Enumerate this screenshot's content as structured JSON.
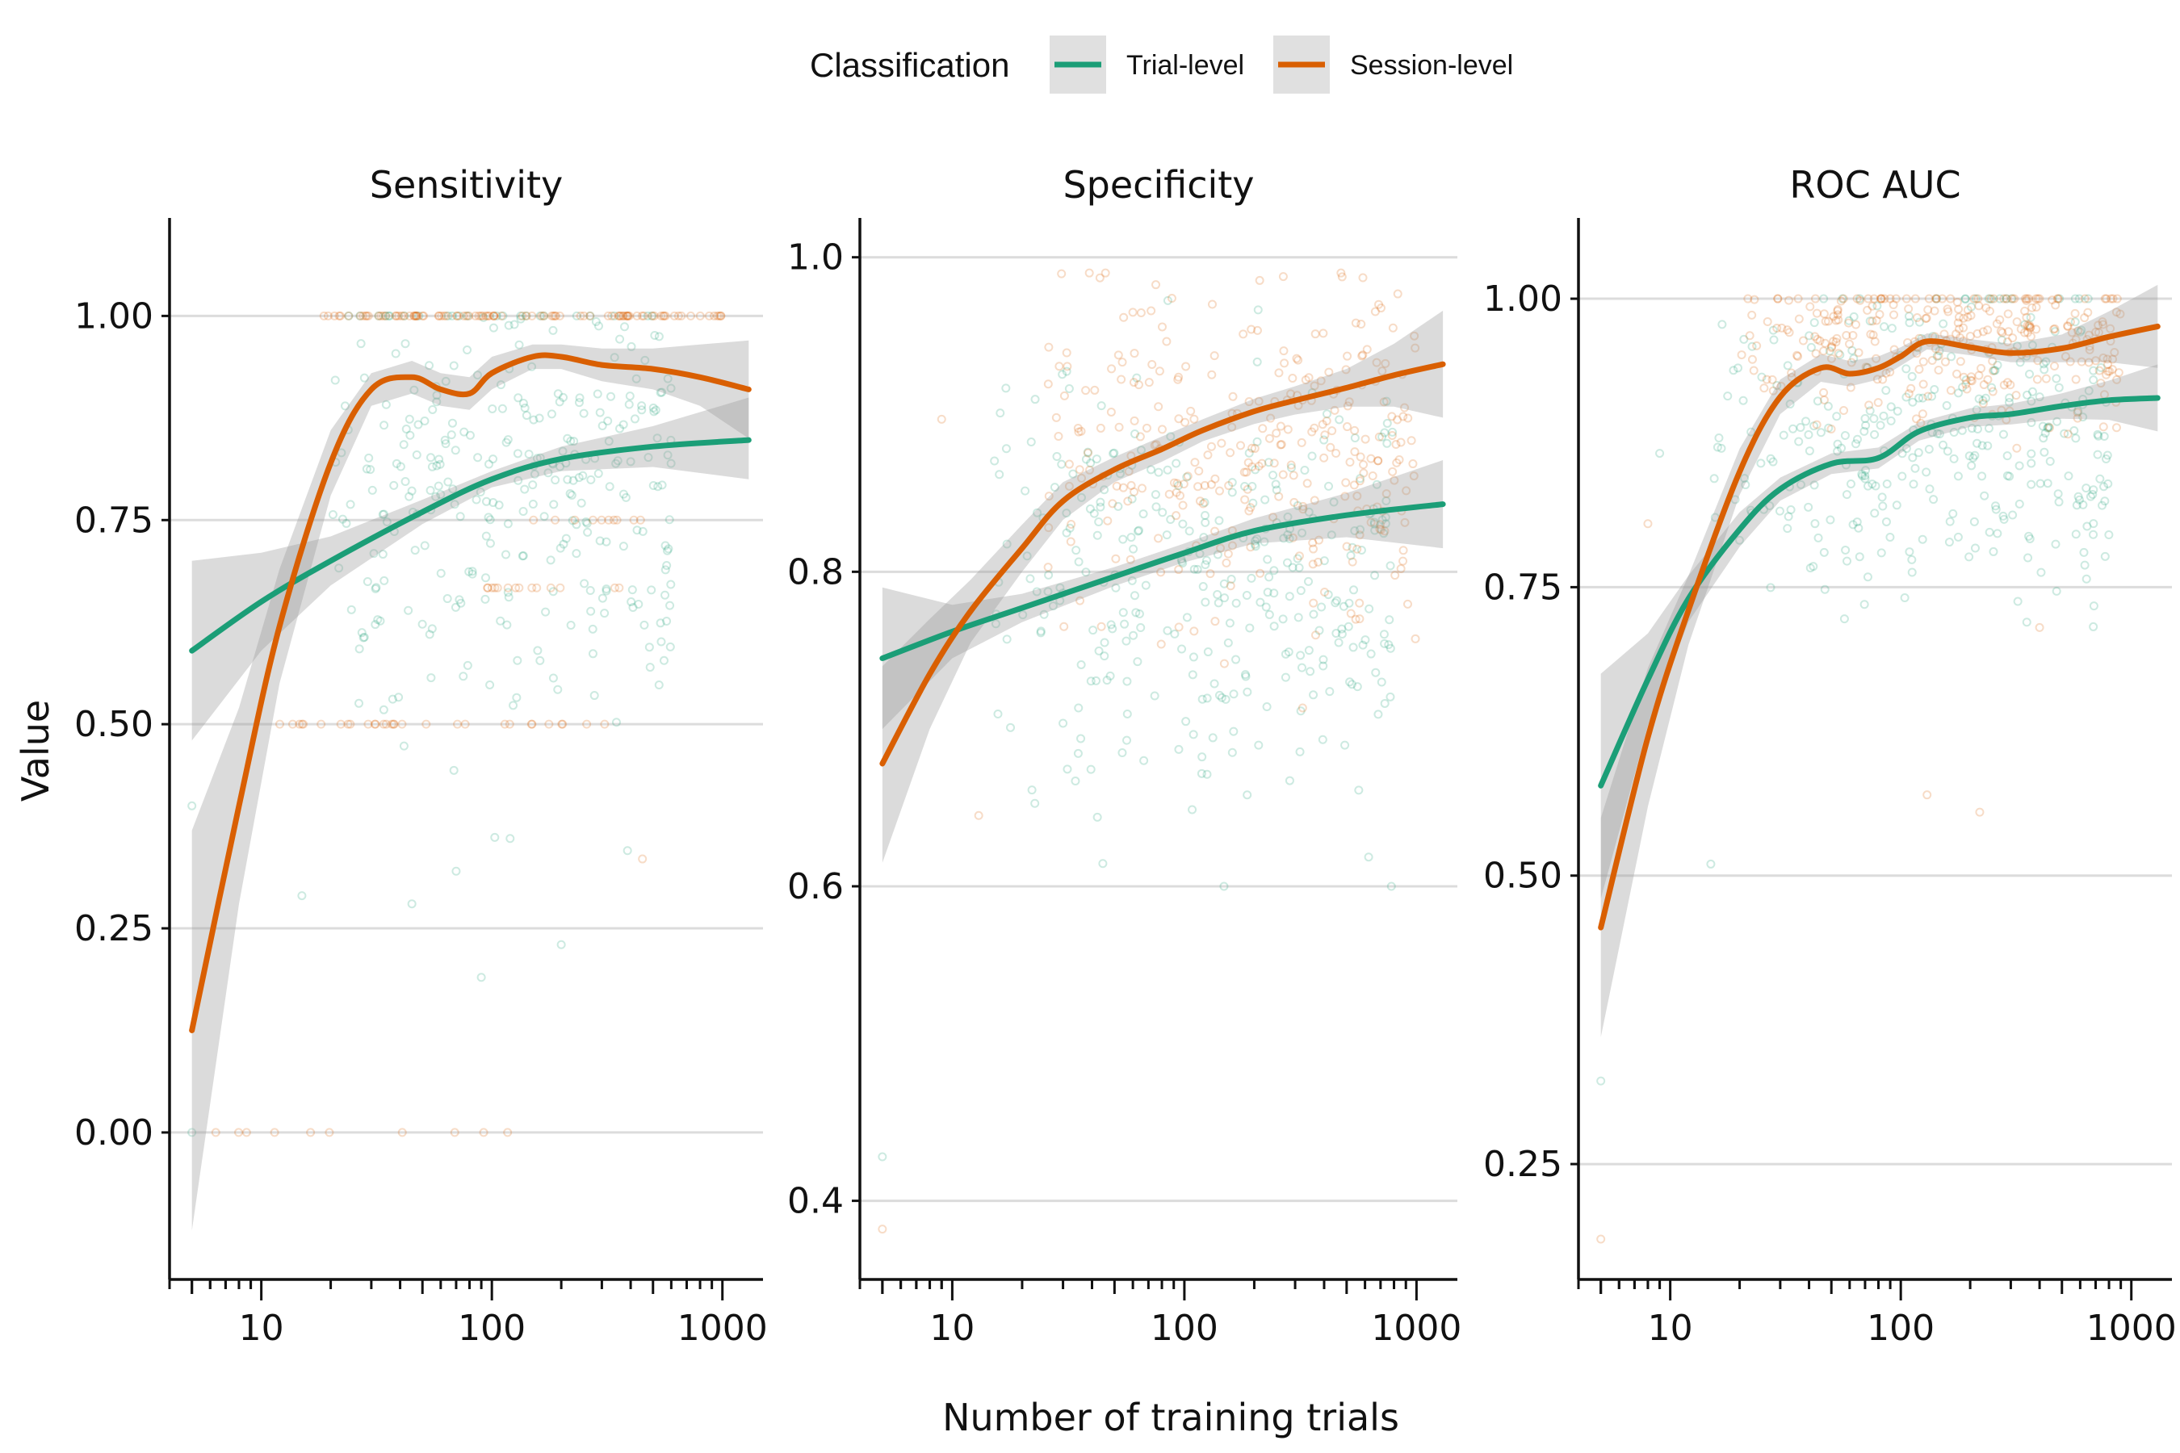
{
  "legend": {
    "title": "Classification",
    "items": [
      {
        "label": "Trial-level",
        "color": "#1b9e77"
      },
      {
        "label": "Session-level",
        "color": "#d95f02"
      }
    ]
  },
  "xlabel": "Number of training trials",
  "ylabel": "Value",
  "chart_data": [
    {
      "type": "scatter",
      "title": "Sensitivity",
      "x_scale": "log10",
      "xlim": [
        4,
        1500
      ],
      "x_ticks": [
        10,
        100,
        1000
      ],
      "x_tick_labels": [
        "10",
        "100",
        "1000"
      ],
      "ylim": [
        -0.18,
        1.12
      ],
      "y_ticks": [
        0,
        0.25,
        0.5,
        0.75,
        1.0
      ],
      "y_tick_labels": [
        "0.00",
        "0.25",
        "0.50",
        "0.75",
        "1.00"
      ],
      "series": [
        {
          "name": "Trial-level",
          "color": "#1b9e77",
          "smooth": {
            "x": [
              5,
              10,
              20,
              50,
              100,
              200,
              500,
              1300
            ],
            "y": [
              0.59,
              0.65,
              0.7,
              0.76,
              0.8,
              0.825,
              0.84,
              0.848
            ],
            "lower": [
              0.48,
              0.59,
              0.67,
              0.745,
              0.79,
              0.81,
              0.815,
              0.8
            ],
            "upper": [
              0.7,
              0.71,
              0.73,
              0.775,
              0.81,
              0.84,
              0.865,
              0.9
            ]
          },
          "points": {
            "x_range": [
              20,
              600
            ],
            "y_range": [
              0.2,
              1.0
            ],
            "y_center": 0.8,
            "spread": 0.13,
            "n": 320,
            "extra": [
              [
                5,
                0.4
              ],
              [
                5,
                0.0
              ],
              [
                15,
                0.29
              ],
              [
                45,
                0.28
              ],
              [
                70,
                0.32
              ],
              [
                90,
                0.19
              ],
              [
                120,
                0.36
              ],
              [
                200,
                0.23
              ]
            ]
          }
        },
        {
          "name": "Session-level",
          "color": "#d95f02",
          "smooth": {
            "x": [
              5,
              8,
              12,
              20,
              30,
              45,
              60,
              80,
              100,
              150,
              200,
              300,
              500,
              800,
              1300
            ],
            "y": [
              0.125,
              0.4,
              0.62,
              0.82,
              0.91,
              0.925,
              0.91,
              0.905,
              0.93,
              0.95,
              0.95,
              0.94,
              0.935,
              0.925,
              0.91
            ],
            "lower": [
              -0.12,
              0.28,
              0.55,
              0.78,
              0.89,
              0.905,
              0.89,
              0.885,
              0.91,
              0.935,
              0.935,
              0.92,
              0.91,
              0.89,
              0.85
            ],
            "upper": [
              0.37,
              0.52,
              0.69,
              0.86,
              0.93,
              0.945,
              0.93,
              0.925,
              0.95,
              0.965,
              0.965,
              0.96,
              0.96,
              0.965,
              0.97
            ]
          },
          "points": {
            "bands": [
              [
                1.0,
                18,
                1000,
                95
              ],
              [
                0.5,
                12,
                350,
                30
              ],
              [
                0.667,
                70,
                400,
                14
              ],
              [
                0.75,
                150,
                500,
                10
              ],
              [
                0.0,
                5,
                130,
                10
              ]
            ],
            "extra": [
              [
                450,
                0.335
              ]
            ]
          }
        }
      ]
    },
    {
      "type": "scatter",
      "title": "Specificity",
      "x_scale": "log10",
      "xlim": [
        4,
        1500
      ],
      "x_ticks": [
        10,
        100,
        1000
      ],
      "x_tick_labels": [
        "10",
        "100",
        "1000"
      ],
      "ylim": [
        0.35,
        1.025
      ],
      "y_ticks": [
        0.4,
        0.6,
        0.8,
        1.0
      ],
      "y_tick_labels": [
        "0.4",
        "0.6",
        "0.8",
        "1.0"
      ],
      "series": [
        {
          "name": "Trial-level",
          "color": "#1b9e77",
          "smooth": {
            "x": [
              5,
              10,
              20,
              50,
              100,
              200,
              500,
              1300
            ],
            "y": [
              0.745,
              0.762,
              0.777,
              0.797,
              0.812,
              0.826,
              0.836,
              0.843
            ],
            "lower": [
              0.7,
              0.745,
              0.768,
              0.791,
              0.806,
              0.818,
              0.822,
              0.815
            ],
            "upper": [
              0.79,
              0.779,
              0.786,
              0.803,
              0.818,
              0.834,
              0.85,
              0.871
            ]
          },
          "points": {
            "x_range": [
              15,
              800
            ],
            "y_range": [
              0.6,
              0.98
            ],
            "y_center": 0.8,
            "spread": 0.07,
            "n": 330,
            "extra": [
              [
                5,
                0.428
              ]
            ]
          }
        },
        {
          "name": "Session-level",
          "color": "#d95f02",
          "smooth": {
            "x": [
              5,
              8,
              12,
              20,
              30,
              50,
              80,
              120,
              200,
              300,
              500,
              800,
              1300
            ],
            "y": [
              0.678,
              0.735,
              0.775,
              0.815,
              0.845,
              0.865,
              0.878,
              0.89,
              0.902,
              0.909,
              0.917,
              0.925,
              0.932
            ],
            "lower": [
              0.615,
              0.7,
              0.755,
              0.8,
              0.833,
              0.857,
              0.87,
              0.883,
              0.894,
              0.9,
              0.905,
              0.905,
              0.898
            ],
            "upper": [
              0.74,
              0.77,
              0.795,
              0.83,
              0.857,
              0.873,
              0.886,
              0.897,
              0.91,
              0.918,
              0.929,
              0.945,
              0.966
            ]
          },
          "points": {
            "x_range": [
              25,
              1000
            ],
            "y_range": [
              0.62,
              0.99
            ],
            "y_center": 0.88,
            "spread": 0.055,
            "n": 300,
            "extra": [
              [
                5,
                0.382
              ],
              [
                9,
                0.897
              ],
              [
                13,
                0.645
              ]
            ]
          }
        }
      ]
    },
    {
      "type": "scatter",
      "title": "ROC AUC",
      "x_scale": "log10",
      "xlim": [
        4,
        1500
      ],
      "x_ticks": [
        10,
        100,
        1000
      ],
      "x_tick_labels": [
        "10",
        "100",
        "1000"
      ],
      "ylim": [
        0.15,
        1.07
      ],
      "y_ticks": [
        0.25,
        0.5,
        0.75,
        1.0
      ],
      "y_tick_labels": [
        "0.25",
        "0.50",
        "0.75",
        "1.00"
      ],
      "series": [
        {
          "name": "Trial-level",
          "color": "#1b9e77",
          "smooth": {
            "x": [
              5,
              8,
              12,
              20,
              30,
              50,
              80,
              120,
              200,
              300,
              500,
              800,
              1300
            ],
            "y": [
              0.578,
              0.67,
              0.74,
              0.8,
              0.835,
              0.857,
              0.862,
              0.885,
              0.897,
              0.9,
              0.907,
              0.912,
              0.914
            ],
            "lower": [
              0.48,
              0.63,
              0.72,
              0.785,
              0.825,
              0.848,
              0.853,
              0.877,
              0.889,
              0.891,
              0.896,
              0.895,
              0.885
            ],
            "upper": [
              0.675,
              0.71,
              0.76,
              0.815,
              0.845,
              0.866,
              0.871,
              0.893,
              0.905,
              0.909,
              0.918,
              0.929,
              0.943
            ]
          },
          "points": {
            "x_range": [
              15,
              800
            ],
            "y_range": [
              0.55,
              1.0
            ],
            "y_center": 0.88,
            "spread": 0.07,
            "n": 330,
            "extra": [
              [
                5,
                0.322
              ],
              [
                9,
                0.866
              ],
              [
                15,
                0.51
              ]
            ]
          }
        },
        {
          "name": "Session-level",
          "color": "#d95f02",
          "smooth": {
            "x": [
              5,
              8,
              12,
              20,
              30,
              45,
              60,
              80,
              100,
              130,
              200,
              300,
              500,
              800,
              1300
            ],
            "y": [
              0.455,
              0.62,
              0.73,
              0.85,
              0.915,
              0.94,
              0.935,
              0.94,
              0.95,
              0.963,
              0.958,
              0.953,
              0.957,
              0.967,
              0.976
            ],
            "lower": [
              0.36,
              0.56,
              0.7,
              0.83,
              0.9,
              0.928,
              0.924,
              0.93,
              0.942,
              0.956,
              0.951,
              0.945,
              0.945,
              0.945,
              0.94
            ],
            "upper": [
              0.55,
              0.68,
              0.76,
              0.87,
              0.93,
              0.952,
              0.946,
              0.95,
              0.958,
              0.97,
              0.965,
              0.961,
              0.969,
              0.989,
              1.012
            ]
          },
          "points": {
            "x_range": [
              20,
              900
            ],
            "y_range": [
              0.55,
              1.0
            ],
            "y_center": 0.965,
            "spread": 0.035,
            "n": 300,
            "extra": [
              [
                5,
                0.185
              ],
              [
                8,
                0.805
              ],
              [
                130,
                0.57
              ],
              [
                220,
                0.555
              ],
              [
                400,
                0.715
              ]
            ]
          }
        }
      ]
    }
  ]
}
